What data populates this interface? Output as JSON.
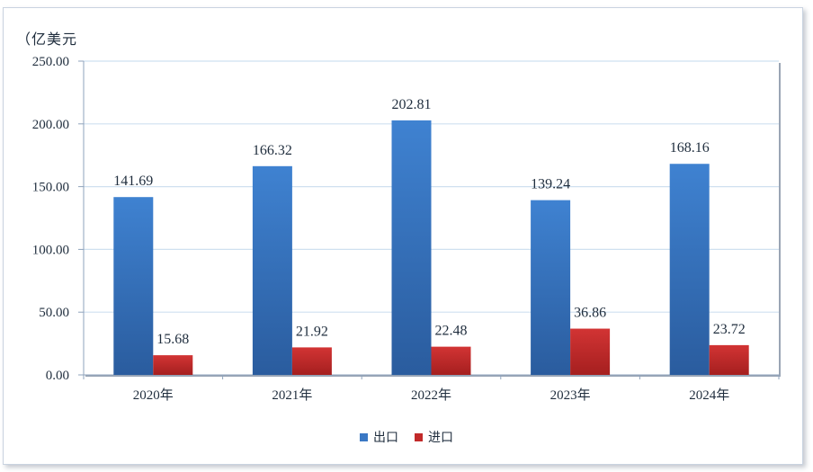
{
  "colors": {
    "export": "#3a78c4",
    "import": "#c22a2a",
    "grid": "#cfe0f0",
    "axis": "#8fa3bc",
    "text": "#1f2d3d"
  },
  "chart_data": {
    "type": "bar",
    "unit_label": "（亿美元",
    "categories": [
      "2020年",
      "2021年",
      "2022年",
      "2023年",
      "2024年"
    ],
    "series": [
      {
        "name": "出口",
        "values": [
          141.69,
          166.32,
          202.81,
          139.24,
          168.16
        ],
        "labels": [
          "141.69",
          "166.32",
          "202.81",
          "139.24",
          "168.16"
        ]
      },
      {
        "name": "进口",
        "values": [
          15.68,
          21.92,
          22.48,
          36.86,
          23.72
        ],
        "labels": [
          "15.68",
          "21.92",
          "22.48",
          "36.86",
          "23.72"
        ]
      }
    ],
    "ylim": [
      0,
      250
    ],
    "yticks": [
      0,
      50,
      100,
      150,
      200,
      250
    ],
    "ytick_labels": [
      "0.00",
      "50.00",
      "100.00",
      "150.00",
      "200.00",
      "250.00"
    ],
    "grid": true,
    "legend_position": "bottom"
  }
}
